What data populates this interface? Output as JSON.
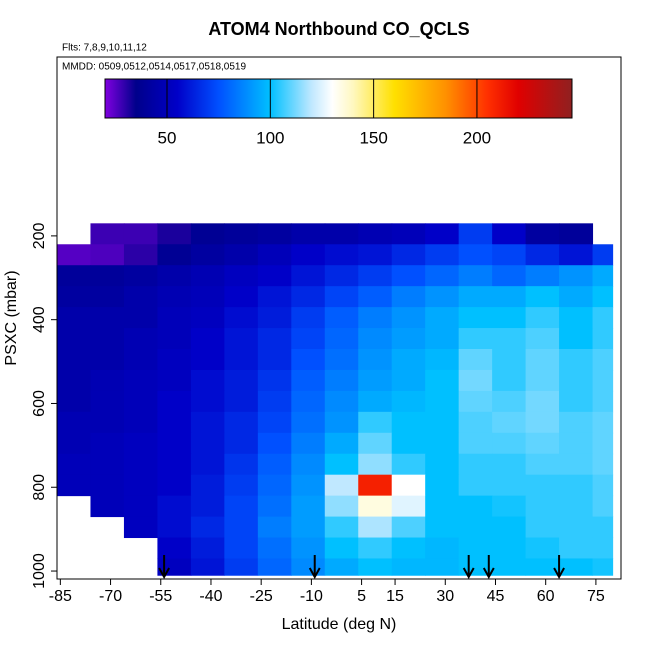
{
  "chart_data": {
    "type": "heatmap",
    "title": "ATOM4 Northbound CO_QCLS",
    "subtitle": "Flts: 7,8,9,10,11,12",
    "annotation": "MMDD: 0509,0512,0514,0517,0518,0519",
    "x_label": "Latitude (deg N)",
    "y_label": "PSXC (mbar)",
    "xlim": [
      -86,
      82.5
    ],
    "xticks": [
      -85,
      -70,
      -55,
      -40,
      -25,
      -10,
      5,
      15,
      30,
      45,
      60,
      75
    ],
    "ylim": [
      -227,
      1019
    ],
    "yticks": [
      200,
      400,
      600,
      800,
      1000
    ],
    "y_reversed": true,
    "colorbar": {
      "lim": [
        20,
        246
      ],
      "ticks": [
        50,
        100,
        150,
        200
      ]
    },
    "colorscale": [
      [
        20,
        "#8000e0"
      ],
      [
        35,
        "#00008b"
      ],
      [
        55,
        "#0000c8"
      ],
      [
        75,
        "#0050ff"
      ],
      [
        100,
        "#00c0ff"
      ],
      [
        120,
        "#c0e8ff"
      ],
      [
        130,
        "#ffffff"
      ],
      [
        140,
        "#fff8c0"
      ],
      [
        160,
        "#ffe000"
      ],
      [
        185,
        "#ff9000"
      ],
      [
        205,
        "#ff3000"
      ],
      [
        220,
        "#e00000"
      ],
      [
        246,
        "#902020"
      ]
    ],
    "x_edges": [
      -86,
      -76,
      -66,
      -56,
      -46,
      -36,
      -26,
      -16,
      -6,
      4,
      14,
      24,
      34,
      44,
      54,
      64,
      74,
      80
    ],
    "y_edges": [
      170,
      220,
      270,
      320,
      370,
      420,
      470,
      520,
      570,
      620,
      670,
      720,
      770,
      820,
      870,
      920,
      970,
      1010
    ],
    "values": [
      [
        null,
        28,
        28,
        32,
        38,
        40,
        42,
        45,
        45,
        48,
        50,
        55,
        70,
        55,
        42,
        40,
        null
      ],
      [
        25,
        26,
        30,
        38,
        42,
        45,
        50,
        55,
        58,
        60,
        65,
        70,
        75,
        72,
        65,
        60,
        70
      ],
      [
        40,
        40,
        42,
        45,
        48,
        52,
        55,
        60,
        65,
        70,
        75,
        80,
        85,
        80,
        85,
        90,
        95
      ],
      [
        42,
        42,
        45,
        48,
        50,
        55,
        60,
        65,
        72,
        78,
        85,
        90,
        95,
        95,
        100,
        95,
        100
      ],
      [
        45,
        45,
        45,
        50,
        52,
        58,
        62,
        70,
        78,
        85,
        90,
        95,
        100,
        100,
        105,
        100,
        105
      ],
      [
        45,
        45,
        48,
        50,
        55,
        60,
        65,
        72,
        80,
        88,
        92,
        95,
        105,
        105,
        108,
        100,
        105
      ],
      [
        45,
        45,
        48,
        52,
        55,
        60,
        65,
        75,
        82,
        90,
        95,
        98,
        110,
        105,
        110,
        105,
        108
      ],
      [
        45,
        48,
        50,
        52,
        58,
        62,
        68,
        78,
        85,
        92,
        95,
        100,
        112,
        105,
        110,
        105,
        108
      ],
      [
        45,
        48,
        50,
        55,
        58,
        62,
        70,
        80,
        88,
        95,
        98,
        100,
        110,
        108,
        112,
        105,
        108
      ],
      [
        48,
        48,
        50,
        55,
        60,
        65,
        72,
        82,
        90,
        105,
        100,
        100,
        108,
        110,
        112,
        108,
        110
      ],
      [
        48,
        50,
        52,
        55,
        60,
        65,
        75,
        85,
        95,
        110,
        100,
        100,
        108,
        108,
        110,
        108,
        110
      ],
      [
        50,
        50,
        52,
        55,
        60,
        68,
        78,
        88,
        100,
        115,
        105,
        100,
        105,
        105,
        108,
        108,
        110
      ],
      [
        50,
        50,
        52,
        55,
        62,
        70,
        80,
        90,
        120,
        210,
        130,
        100,
        105,
        105,
        105,
        105,
        108
      ],
      [
        null,
        50,
        52,
        58,
        62,
        72,
        82,
        92,
        115,
        135,
        125,
        100,
        100,
        102,
        105,
        105,
        108
      ],
      [
        null,
        null,
        52,
        58,
        65,
        72,
        85,
        92,
        105,
        118,
        108,
        100,
        100,
        100,
        105,
        105,
        105
      ],
      [
        null,
        null,
        null,
        55,
        62,
        72,
        82,
        90,
        100,
        105,
        100,
        98,
        100,
        100,
        102,
        105,
        105
      ],
      [
        null,
        null,
        null,
        52,
        60,
        70,
        80,
        88,
        95,
        100,
        98,
        98,
        100,
        100,
        100,
        100,
        102
      ]
    ],
    "arrows": [
      -54,
      -9,
      37,
      43,
      64
    ]
  }
}
